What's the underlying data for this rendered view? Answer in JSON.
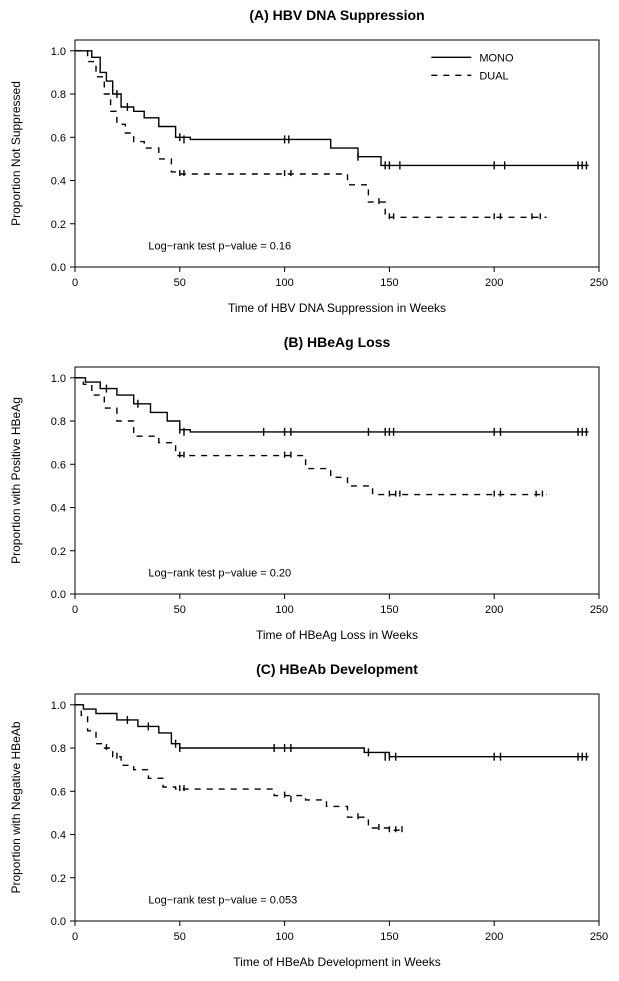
{
  "global": {
    "font_family": "Arial, Helvetica, sans-serif",
    "background_color": "#ffffff",
    "line_color": "#000000",
    "text_color": "#000000",
    "x_ticks": [
      0,
      50,
      100,
      150,
      200,
      250
    ],
    "y_ticks": [
      0.0,
      0.2,
      0.4,
      0.6,
      0.8,
      1.0
    ],
    "xlim": [
      0,
      250
    ],
    "ylim": [
      0,
      1.05
    ],
    "legend": {
      "items": [
        {
          "label": "MONO",
          "dash": "solid"
        },
        {
          "label": "DUAL",
          "dash": "dashed"
        }
      ]
    },
    "dash_pattern": "6,6",
    "tick_len": 5,
    "title_fontsize": 14,
    "title_fontweight": "bold",
    "axis_label_fontsize": 12,
    "tick_fontsize": 11,
    "annotation_fontsize": 11,
    "legend_fontsize": 11,
    "line_width": 1.4,
    "censor_tick_height": 8
  },
  "panels": [
    {
      "key": "A",
      "title": "(A) HBV DNA Suppression",
      "xlabel": "Time of HBV DNA Suppression in Weeks",
      "ylabel": "Proportion Not Suppressed",
      "annotation": "Log−rank test p−value = 0.16",
      "show_legend": true,
      "series": [
        {
          "name": "MONO",
          "dash": "solid",
          "points": [
            [
              0,
              1.0
            ],
            [
              8,
              1.0
            ],
            [
              8,
              0.97
            ],
            [
              12,
              0.97
            ],
            [
              12,
              0.9
            ],
            [
              15,
              0.9
            ],
            [
              15,
              0.86
            ],
            [
              18,
              0.86
            ],
            [
              18,
              0.8
            ],
            [
              22,
              0.8
            ],
            [
              22,
              0.74
            ],
            [
              28,
              0.74
            ],
            [
              28,
              0.72
            ],
            [
              33,
              0.72
            ],
            [
              33,
              0.69
            ],
            [
              40,
              0.69
            ],
            [
              40,
              0.65
            ],
            [
              48,
              0.65
            ],
            [
              48,
              0.6
            ],
            [
              55,
              0.6
            ],
            [
              55,
              0.59
            ],
            [
              100,
              0.59
            ],
            [
              122,
              0.59
            ],
            [
              122,
              0.55
            ],
            [
              135,
              0.55
            ],
            [
              135,
              0.51
            ],
            [
              146,
              0.51
            ],
            [
              146,
              0.47
            ],
            [
              245,
              0.47
            ]
          ],
          "censors": [
            [
              20,
              0.8
            ],
            [
              25,
              0.74
            ],
            [
              50,
              0.6
            ],
            [
              52,
              0.59
            ],
            [
              100,
              0.59
            ],
            [
              102,
              0.59
            ],
            [
              135,
              0.51
            ],
            [
              148,
              0.47
            ],
            [
              150,
              0.47
            ],
            [
              155,
              0.47
            ],
            [
              200,
              0.47
            ],
            [
              205,
              0.47
            ],
            [
              240,
              0.47
            ],
            [
              242,
              0.47
            ],
            [
              244,
              0.47
            ]
          ]
        },
        {
          "name": "DUAL",
          "dash": "dashed",
          "points": [
            [
              0,
              1.0
            ],
            [
              6,
              1.0
            ],
            [
              6,
              0.95
            ],
            [
              10,
              0.95
            ],
            [
              10,
              0.88
            ],
            [
              14,
              0.88
            ],
            [
              14,
              0.8
            ],
            [
              17,
              0.8
            ],
            [
              17,
              0.72
            ],
            [
              20,
              0.72
            ],
            [
              20,
              0.66
            ],
            [
              24,
              0.66
            ],
            [
              24,
              0.62
            ],
            [
              28,
              0.62
            ],
            [
              28,
              0.58
            ],
            [
              33,
              0.58
            ],
            [
              33,
              0.55
            ],
            [
              40,
              0.55
            ],
            [
              40,
              0.5
            ],
            [
              46,
              0.5
            ],
            [
              46,
              0.44
            ],
            [
              50,
              0.44
            ],
            [
              50,
              0.43
            ],
            [
              130,
              0.43
            ],
            [
              130,
              0.38
            ],
            [
              140,
              0.38
            ],
            [
              140,
              0.3
            ],
            [
              148,
              0.3
            ],
            [
              148,
              0.23
            ],
            [
              225,
              0.23
            ]
          ],
          "censors": [
            [
              50,
              0.43
            ],
            [
              52,
              0.43
            ],
            [
              100,
              0.43
            ],
            [
              103,
              0.43
            ],
            [
              145,
              0.3
            ],
            [
              150,
              0.23
            ],
            [
              152,
              0.23
            ],
            [
              200,
              0.23
            ],
            [
              203,
              0.23
            ],
            [
              218,
              0.23
            ],
            [
              222,
              0.23
            ]
          ]
        }
      ]
    },
    {
      "key": "B",
      "title": "(B) HBeAg Loss",
      "xlabel": "Time of HBeAg Loss in Weeks",
      "ylabel": "Proportion with Positive HBeAg",
      "annotation": "Log−rank test p−value = 0.20",
      "show_legend": false,
      "series": [
        {
          "name": "MONO",
          "dash": "solid",
          "points": [
            [
              0,
              1.0
            ],
            [
              5,
              1.0
            ],
            [
              5,
              0.98
            ],
            [
              12,
              0.98
            ],
            [
              12,
              0.95
            ],
            [
              20,
              0.95
            ],
            [
              20,
              0.92
            ],
            [
              28,
              0.92
            ],
            [
              28,
              0.88
            ],
            [
              36,
              0.88
            ],
            [
              36,
              0.84
            ],
            [
              44,
              0.84
            ],
            [
              44,
              0.8
            ],
            [
              50,
              0.8
            ],
            [
              50,
              0.76
            ],
            [
              55,
              0.76
            ],
            [
              55,
              0.75
            ],
            [
              245,
              0.75
            ]
          ],
          "censors": [
            [
              15,
              0.95
            ],
            [
              30,
              0.88
            ],
            [
              50,
              0.76
            ],
            [
              52,
              0.75
            ],
            [
              90,
              0.75
            ],
            [
              100,
              0.75
            ],
            [
              103,
              0.75
            ],
            [
              140,
              0.75
            ],
            [
              148,
              0.75
            ],
            [
              150,
              0.75
            ],
            [
              152,
              0.75
            ],
            [
              200,
              0.75
            ],
            [
              203,
              0.75
            ],
            [
              240,
              0.75
            ],
            [
              242,
              0.75
            ],
            [
              244,
              0.75
            ]
          ]
        },
        {
          "name": "DUAL",
          "dash": "dashed",
          "points": [
            [
              0,
              1.0
            ],
            [
              4,
              1.0
            ],
            [
              4,
              0.97
            ],
            [
              8,
              0.97
            ],
            [
              8,
              0.92
            ],
            [
              14,
              0.92
            ],
            [
              14,
              0.86
            ],
            [
              20,
              0.86
            ],
            [
              20,
              0.8
            ],
            [
              28,
              0.8
            ],
            [
              28,
              0.73
            ],
            [
              40,
              0.73
            ],
            [
              40,
              0.7
            ],
            [
              48,
              0.7
            ],
            [
              48,
              0.64
            ],
            [
              55,
              0.64
            ],
            [
              55,
              0.64
            ],
            [
              110,
              0.64
            ],
            [
              110,
              0.58
            ],
            [
              122,
              0.58
            ],
            [
              122,
              0.54
            ],
            [
              130,
              0.54
            ],
            [
              130,
              0.5
            ],
            [
              142,
              0.5
            ],
            [
              142,
              0.46
            ],
            [
              150,
              0.46
            ],
            [
              150,
              0.46
            ],
            [
              225,
              0.46
            ]
          ],
          "censors": [
            [
              50,
              0.64
            ],
            [
              52,
              0.64
            ],
            [
              100,
              0.64
            ],
            [
              103,
              0.64
            ],
            [
              150,
              0.46
            ],
            [
              153,
              0.46
            ],
            [
              155,
              0.46
            ],
            [
              200,
              0.46
            ],
            [
              203,
              0.46
            ],
            [
              220,
              0.46
            ],
            [
              223,
              0.46
            ]
          ]
        }
      ]
    },
    {
      "key": "C",
      "title": "(C) HBeAb Development",
      "xlabel": "Time of HBeAb Development in Weeks",
      "ylabel": "Proportion with Negative HBeAb",
      "annotation": "Log−rank test p−value = 0.053",
      "show_legend": false,
      "series": [
        {
          "name": "MONO",
          "dash": "solid",
          "points": [
            [
              0,
              1.0
            ],
            [
              4,
              1.0
            ],
            [
              4,
              0.98
            ],
            [
              10,
              0.98
            ],
            [
              10,
              0.96
            ],
            [
              20,
              0.96
            ],
            [
              20,
              0.93
            ],
            [
              30,
              0.93
            ],
            [
              30,
              0.9
            ],
            [
              40,
              0.9
            ],
            [
              40,
              0.87
            ],
            [
              46,
              0.87
            ],
            [
              46,
              0.82
            ],
            [
              50,
              0.82
            ],
            [
              50,
              0.8
            ],
            [
              138,
              0.8
            ],
            [
              138,
              0.78
            ],
            [
              150,
              0.78
            ],
            [
              150,
              0.76
            ],
            [
              245,
              0.76
            ]
          ],
          "censors": [
            [
              25,
              0.93
            ],
            [
              35,
              0.9
            ],
            [
              48,
              0.82
            ],
            [
              50,
              0.8
            ],
            [
              95,
              0.8
            ],
            [
              100,
              0.8
            ],
            [
              103,
              0.8
            ],
            [
              140,
              0.78
            ],
            [
              148,
              0.76
            ],
            [
              150,
              0.76
            ],
            [
              153,
              0.76
            ],
            [
              200,
              0.76
            ],
            [
              203,
              0.76
            ],
            [
              240,
              0.76
            ],
            [
              242,
              0.76
            ],
            [
              244,
              0.76
            ]
          ]
        },
        {
          "name": "DUAL",
          "dash": "dashed",
          "points": [
            [
              0,
              1.0
            ],
            [
              3,
              1.0
            ],
            [
              3,
              0.95
            ],
            [
              6,
              0.95
            ],
            [
              6,
              0.88
            ],
            [
              10,
              0.88
            ],
            [
              10,
              0.82
            ],
            [
              13,
              0.82
            ],
            [
              13,
              0.8
            ],
            [
              18,
              0.8
            ],
            [
              18,
              0.76
            ],
            [
              22,
              0.76
            ],
            [
              22,
              0.72
            ],
            [
              28,
              0.72
            ],
            [
              28,
              0.7
            ],
            [
              35,
              0.7
            ],
            [
              35,
              0.66
            ],
            [
              42,
              0.66
            ],
            [
              42,
              0.62
            ],
            [
              48,
              0.62
            ],
            [
              48,
              0.61
            ],
            [
              95,
              0.61
            ],
            [
              95,
              0.58
            ],
            [
              110,
              0.58
            ],
            [
              110,
              0.56
            ],
            [
              120,
              0.56
            ],
            [
              120,
              0.53
            ],
            [
              130,
              0.53
            ],
            [
              130,
              0.48
            ],
            [
              140,
              0.48
            ],
            [
              140,
              0.43
            ],
            [
              150,
              0.43
            ],
            [
              150,
              0.42
            ],
            [
              156,
              0.42
            ]
          ],
          "censors": [
            [
              15,
              0.8
            ],
            [
              20,
              0.76
            ],
            [
              50,
              0.61
            ],
            [
              52,
              0.61
            ],
            [
              100,
              0.58
            ],
            [
              103,
              0.56
            ],
            [
              135,
              0.48
            ],
            [
              145,
              0.43
            ],
            [
              150,
              0.42
            ],
            [
              153,
              0.42
            ],
            [
              156,
              0.42
            ]
          ]
        }
      ]
    }
  ]
}
